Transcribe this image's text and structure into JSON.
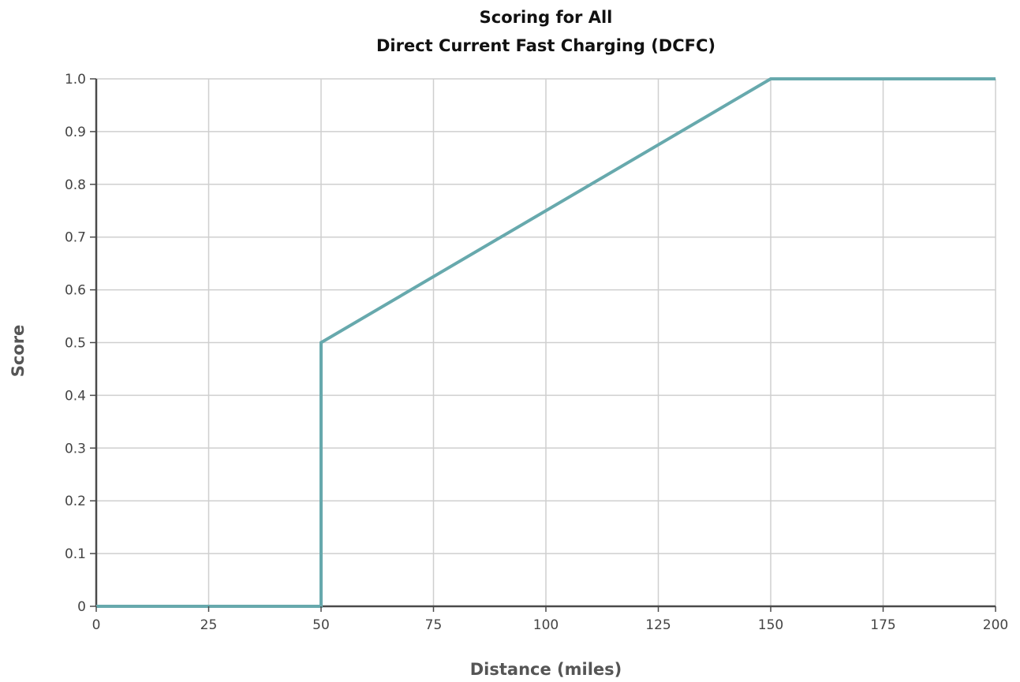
{
  "chart_data": {
    "type": "line",
    "title": [
      "Scoring for All",
      "Direct Current Fast Charging (DCFC)"
    ],
    "xlabel": "Distance (miles)",
    "ylabel": "Score",
    "xlim": [
      0,
      200
    ],
    "ylim": [
      0,
      1.0
    ],
    "x_ticks": [
      0,
      25,
      50,
      75,
      100,
      125,
      150,
      175,
      200
    ],
    "y_ticks": [
      0,
      0.1,
      0.2,
      0.3,
      0.4,
      0.5,
      0.6,
      0.7,
      0.8,
      0.9,
      1.0
    ],
    "x_tick_labels": [
      "0",
      "25",
      "50",
      "75",
      "100",
      "125",
      "150",
      "175",
      "200"
    ],
    "y_tick_labels": [
      "0",
      "0.1",
      "0.2",
      "0.3",
      "0.4",
      "0.5",
      "0.6",
      "0.7",
      "0.8",
      "0.9",
      "1.0"
    ],
    "grid": true,
    "legend": "none",
    "series": [
      {
        "color": "#67a9ad",
        "points": [
          {
            "x": 0,
            "y": 0
          },
          {
            "x": 50,
            "y": 0
          },
          {
            "x": 50,
            "y": 0.5
          },
          {
            "x": 150,
            "y": 1.0
          },
          {
            "x": 200,
            "y": 1.0
          }
        ]
      }
    ]
  }
}
